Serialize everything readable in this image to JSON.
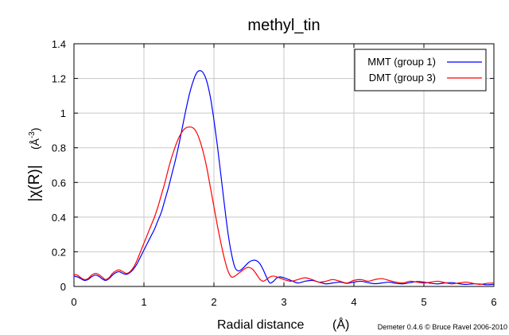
{
  "chart_data": {
    "type": "line",
    "title": "methyl_tin",
    "xlabel": "Radial distance",
    "xlabel_unit": "(Å)",
    "ylabel": "|χ(R)|",
    "ylabel_unit_base": "(Å",
    "ylabel_unit_exp": "-3",
    "ylabel_unit_close": ")",
    "credit": "Demeter 0.4.6 © Bruce Ravel 2006-2010",
    "xlim": [
      0,
      6
    ],
    "ylim": [
      0,
      1.4
    ],
    "xticks": [
      0,
      1,
      2,
      3,
      4,
      5,
      6
    ],
    "xtick_labels": [
      "0",
      "1",
      "2",
      "3",
      "4",
      "5",
      "6"
    ],
    "yticks": [
      0,
      0.2,
      0.4,
      0.6,
      0.8,
      1.0,
      1.2,
      1.4
    ],
    "ytick_labels": [
      "0",
      "0.2",
      "0.4",
      "0.6",
      "0.8",
      "1",
      "1.2",
      "1.4"
    ],
    "grid": true,
    "legend_position": "top-right",
    "series": [
      {
        "name": "MMT (group 1)",
        "color": "#0000ff",
        "points": [
          [
            0.0,
            0.06
          ],
          [
            0.05,
            0.055
          ],
          [
            0.1,
            0.045
          ],
          [
            0.15,
            0.035
          ],
          [
            0.2,
            0.04
          ],
          [
            0.25,
            0.055
          ],
          [
            0.3,
            0.065
          ],
          [
            0.35,
            0.06
          ],
          [
            0.4,
            0.045
          ],
          [
            0.45,
            0.035
          ],
          [
            0.5,
            0.045
          ],
          [
            0.55,
            0.065
          ],
          [
            0.6,
            0.08
          ],
          [
            0.65,
            0.085
          ],
          [
            0.7,
            0.075
          ],
          [
            0.75,
            0.07
          ],
          [
            0.8,
            0.08
          ],
          [
            0.85,
            0.1
          ],
          [
            0.9,
            0.13
          ],
          [
            0.95,
            0.17
          ],
          [
            1.0,
            0.21
          ],
          [
            1.05,
            0.25
          ],
          [
            1.1,
            0.29
          ],
          [
            1.15,
            0.33
          ],
          [
            1.2,
            0.38
          ],
          [
            1.25,
            0.43
          ],
          [
            1.3,
            0.5
          ],
          [
            1.35,
            0.57
          ],
          [
            1.4,
            0.65
          ],
          [
            1.45,
            0.73
          ],
          [
            1.5,
            0.82
          ],
          [
            1.55,
            0.92
          ],
          [
            1.6,
            1.02
          ],
          [
            1.65,
            1.11
          ],
          [
            1.7,
            1.18
          ],
          [
            1.75,
            1.23
          ],
          [
            1.8,
            1.245
          ],
          [
            1.85,
            1.23
          ],
          [
            1.9,
            1.18
          ],
          [
            1.95,
            1.09
          ],
          [
            2.0,
            0.96
          ],
          [
            2.05,
            0.81
          ],
          [
            2.1,
            0.64
          ],
          [
            2.15,
            0.47
          ],
          [
            2.2,
            0.31
          ],
          [
            2.25,
            0.19
          ],
          [
            2.3,
            0.11
          ],
          [
            2.35,
            0.09
          ],
          [
            2.4,
            0.1
          ],
          [
            2.45,
            0.12
          ],
          [
            2.5,
            0.14
          ],
          [
            2.55,
            0.15
          ],
          [
            2.6,
            0.15
          ],
          [
            2.65,
            0.135
          ],
          [
            2.7,
            0.1
          ],
          [
            2.75,
            0.055
          ],
          [
            2.8,
            0.02
          ],
          [
            2.85,
            0.03
          ],
          [
            2.9,
            0.05
          ],
          [
            2.95,
            0.055
          ],
          [
            3.0,
            0.05
          ],
          [
            3.1,
            0.035
          ],
          [
            3.2,
            0.02
          ],
          [
            3.3,
            0.03
          ],
          [
            3.4,
            0.035
          ],
          [
            3.5,
            0.025
          ],
          [
            3.6,
            0.015
          ],
          [
            3.7,
            0.02
          ],
          [
            3.8,
            0.025
          ],
          [
            3.9,
            0.018
          ],
          [
            4.0,
            0.025
          ],
          [
            4.1,
            0.03
          ],
          [
            4.2,
            0.022
          ],
          [
            4.3,
            0.016
          ],
          [
            4.4,
            0.02
          ],
          [
            4.5,
            0.025
          ],
          [
            4.6,
            0.018
          ],
          [
            4.7,
            0.015
          ],
          [
            4.8,
            0.022
          ],
          [
            4.9,
            0.028
          ],
          [
            5.0,
            0.025
          ],
          [
            5.1,
            0.018
          ],
          [
            5.2,
            0.015
          ],
          [
            5.3,
            0.02
          ],
          [
            5.4,
            0.022
          ],
          [
            5.5,
            0.016
          ],
          [
            5.6,
            0.012
          ],
          [
            5.7,
            0.015
          ],
          [
            5.8,
            0.014
          ],
          [
            5.9,
            0.01
          ],
          [
            6.0,
            0.012
          ]
        ]
      },
      {
        "name": "DMT (group 3)",
        "color": "#ff0000",
        "points": [
          [
            0.0,
            0.07
          ],
          [
            0.05,
            0.065
          ],
          [
            0.1,
            0.05
          ],
          [
            0.15,
            0.04
          ],
          [
            0.2,
            0.045
          ],
          [
            0.25,
            0.065
          ],
          [
            0.3,
            0.075
          ],
          [
            0.35,
            0.07
          ],
          [
            0.4,
            0.055
          ],
          [
            0.45,
            0.04
          ],
          [
            0.5,
            0.05
          ],
          [
            0.55,
            0.075
          ],
          [
            0.6,
            0.09
          ],
          [
            0.65,
            0.095
          ],
          [
            0.7,
            0.085
          ],
          [
            0.75,
            0.075
          ],
          [
            0.8,
            0.085
          ],
          [
            0.85,
            0.11
          ],
          [
            0.9,
            0.15
          ],
          [
            0.95,
            0.2
          ],
          [
            1.0,
            0.25
          ],
          [
            1.05,
            0.3
          ],
          [
            1.1,
            0.35
          ],
          [
            1.15,
            0.4
          ],
          [
            1.2,
            0.46
          ],
          [
            1.25,
            0.53
          ],
          [
            1.3,
            0.6
          ],
          [
            1.35,
            0.68
          ],
          [
            1.4,
            0.75
          ],
          [
            1.45,
            0.81
          ],
          [
            1.5,
            0.86
          ],
          [
            1.55,
            0.895
          ],
          [
            1.6,
            0.915
          ],
          [
            1.65,
            0.92
          ],
          [
            1.7,
            0.915
          ],
          [
            1.75,
            0.89
          ],
          [
            1.8,
            0.84
          ],
          [
            1.85,
            0.77
          ],
          [
            1.9,
            0.68
          ],
          [
            1.95,
            0.57
          ],
          [
            2.0,
            0.46
          ],
          [
            2.05,
            0.35
          ],
          [
            2.1,
            0.25
          ],
          [
            2.15,
            0.16
          ],
          [
            2.2,
            0.09
          ],
          [
            2.25,
            0.055
          ],
          [
            2.3,
            0.06
          ],
          [
            2.35,
            0.075
          ],
          [
            2.4,
            0.09
          ],
          [
            2.45,
            0.105
          ],
          [
            2.5,
            0.11
          ],
          [
            2.55,
            0.1
          ],
          [
            2.6,
            0.075
          ],
          [
            2.65,
            0.045
          ],
          [
            2.7,
            0.03
          ],
          [
            2.75,
            0.04
          ],
          [
            2.8,
            0.055
          ],
          [
            2.85,
            0.06
          ],
          [
            2.9,
            0.055
          ],
          [
            3.0,
            0.04
          ],
          [
            3.1,
            0.03
          ],
          [
            3.2,
            0.04
          ],
          [
            3.3,
            0.05
          ],
          [
            3.4,
            0.04
          ],
          [
            3.5,
            0.025
          ],
          [
            3.6,
            0.03
          ],
          [
            3.7,
            0.04
          ],
          [
            3.8,
            0.03
          ],
          [
            3.9,
            0.02
          ],
          [
            4.0,
            0.035
          ],
          [
            4.1,
            0.04
          ],
          [
            4.2,
            0.03
          ],
          [
            4.3,
            0.04
          ],
          [
            4.4,
            0.045
          ],
          [
            4.5,
            0.035
          ],
          [
            4.6,
            0.025
          ],
          [
            4.7,
            0.02
          ],
          [
            4.8,
            0.03
          ],
          [
            4.9,
            0.025
          ],
          [
            5.0,
            0.02
          ],
          [
            5.1,
            0.025
          ],
          [
            5.2,
            0.03
          ],
          [
            5.3,
            0.022
          ],
          [
            5.4,
            0.015
          ],
          [
            5.5,
            0.02
          ],
          [
            5.6,
            0.025
          ],
          [
            5.7,
            0.018
          ],
          [
            5.8,
            0.012
          ],
          [
            5.9,
            0.018
          ],
          [
            6.0,
            0.02
          ]
        ]
      }
    ]
  }
}
